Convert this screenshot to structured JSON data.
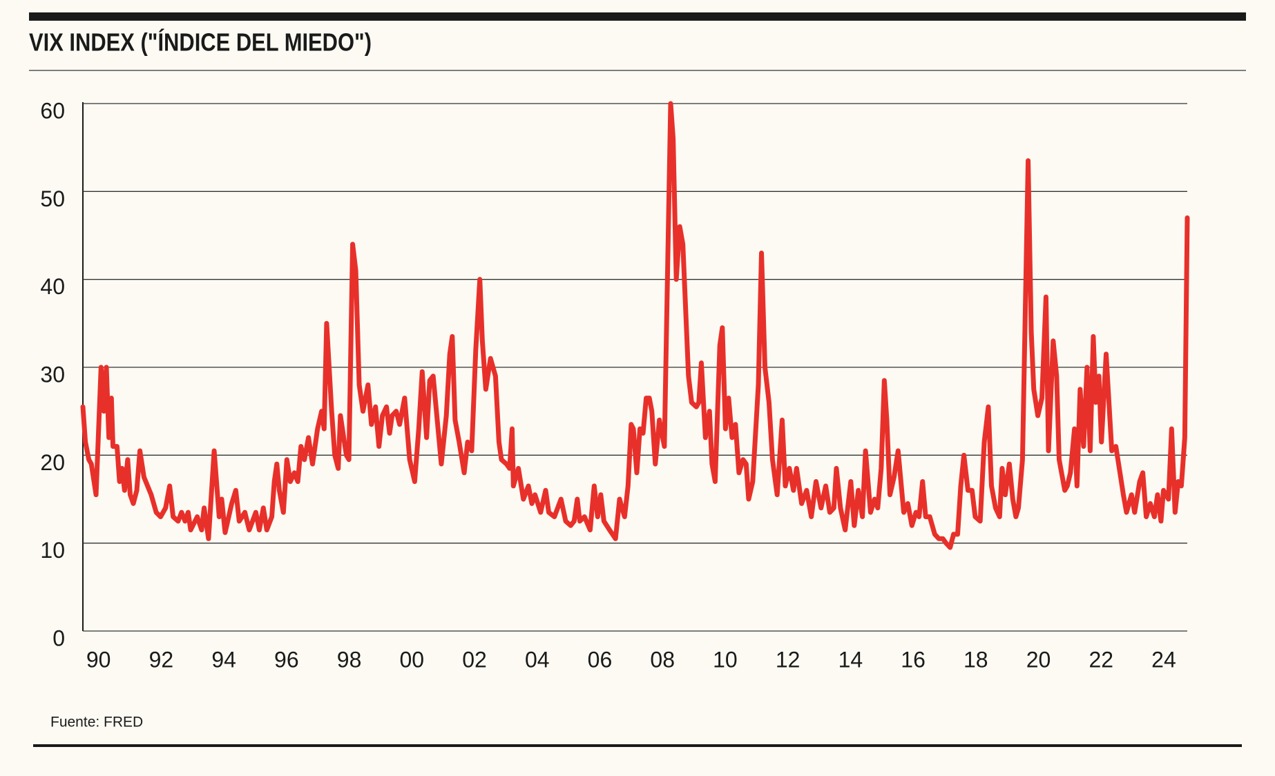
{
  "chart_data": {
    "type": "line",
    "title": "VIX INDEX (\"ÍNDICE DEL MIEDO\")",
    "source": "Fuente: FRED",
    "color": "#e8302a",
    "grid": true,
    "xlim": [
      1990,
      2025.25
    ],
    "ylim": [
      0,
      60
    ],
    "yticks": [
      0,
      10,
      20,
      30,
      40,
      50,
      60
    ],
    "xticks": [
      {
        "value": 1990,
        "label": "90"
      },
      {
        "value": 1992,
        "label": "92"
      },
      {
        "value": 1994,
        "label": "94"
      },
      {
        "value": 1996,
        "label": "96"
      },
      {
        "value": 1998,
        "label": "98"
      },
      {
        "value": 2000,
        "label": "00"
      },
      {
        "value": 2002,
        "label": "02"
      },
      {
        "value": 2004,
        "label": "04"
      },
      {
        "value": 2006,
        "label": "06"
      },
      {
        "value": 2008,
        "label": "08"
      },
      {
        "value": 2010,
        "label": "10"
      },
      {
        "value": 2012,
        "label": "12"
      },
      {
        "value": 2014,
        "label": "14"
      },
      {
        "value": 2016,
        "label": "16"
      },
      {
        "value": 2018,
        "label": "18"
      },
      {
        "value": 2020,
        "label": "20"
      },
      {
        "value": 2022,
        "label": "22"
      },
      {
        "value": 2024,
        "label": "24"
      }
    ],
    "x": [
      1990.0,
      1990.08,
      1990.19,
      1990.27,
      1990.42,
      1990.58,
      1990.67,
      1990.75,
      1990.83,
      1990.91,
      1990.96,
      1991.09,
      1991.17,
      1991.25,
      1991.33,
      1991.43,
      1991.51,
      1991.61,
      1991.72,
      1991.82,
      1991.95,
      1992.18,
      1992.34,
      1992.48,
      1992.64,
      1992.77,
      1992.88,
      1993.04,
      1993.15,
      1993.26,
      1993.36,
      1993.44,
      1993.65,
      1993.79,
      1993.87,
      1994.01,
      1994.19,
      1994.35,
      1994.43,
      1994.54,
      1994.75,
      1994.88,
      1994.99,
      1995.17,
      1995.31,
      1995.52,
      1995.63,
      1995.76,
      1995.87,
      1996.03,
      1996.11,
      1996.19,
      1996.27,
      1996.4,
      1996.51,
      1996.62,
      1996.75,
      1996.86,
      1996.96,
      1997.07,
      1997.2,
      1997.33,
      1997.49,
      1997.62,
      1997.7,
      1997.78,
      1997.94,
      1998.04,
      1998.15,
      1998.22,
      1998.41,
      1998.49,
      1998.61,
      1998.71,
      1998.82,
      1998.94,
      1999.1,
      1999.21,
      1999.34,
      1999.45,
      1999.56,
      1999.69,
      1999.79,
      1999.87,
      2000.0,
      2000.11,
      2000.27,
      2000.43,
      2000.59,
      2000.72,
      2000.83,
      2000.97,
      2001.07,
      2001.18,
      2001.31,
      2001.44,
      2001.6,
      2001.71,
      2001.79,
      2001.88,
      2002.01,
      2002.17,
      2002.28,
      2002.41,
      2002.54,
      2002.67,
      2002.75,
      2002.86,
      2003.01,
      2003.17,
      2003.28,
      2003.36,
      2003.52,
      2003.62,
      2003.7,
      2003.74,
      2003.9,
      2004.06,
      2004.22,
      2004.33,
      2004.43,
      2004.61,
      2004.77,
      2004.87,
      2005.05,
      2005.26,
      2005.41,
      2005.57,
      2005.68,
      2005.78,
      2005.86,
      2006.01,
      2006.19,
      2006.32,
      2006.43,
      2006.53,
      2006.63,
      2006.81,
      2007.0,
      2007.13,
      2007.29,
      2007.4,
      2007.5,
      2007.57,
      2007.68,
      2007.78,
      2007.88,
      2007.98,
      2008.08,
      2008.16,
      2008.27,
      2008.4,
      2008.56,
      2008.76,
      2008.84,
      2008.94,
      2009.05,
      2009.15,
      2009.33,
      2009.43,
      2009.58,
      2009.66,
      2009.74,
      2009.87,
      2010.0,
      2010.08,
      2010.18,
      2010.33,
      2010.41,
      2010.51,
      2010.61,
      2010.72,
      2010.83,
      2010.94,
      2011.07,
      2011.17,
      2011.25,
      2011.38,
      2011.56,
      2011.66,
      2011.77,
      2011.9,
      2012.01,
      2012.16,
      2012.32,
      2012.42,
      2012.55,
      2012.68,
      2012.78,
      2012.94,
      2013.1,
      2013.25,
      2013.4,
      2013.56,
      2013.71,
      2013.84,
      2013.97,
      2014.05,
      2014.18,
      2014.33,
      2014.51,
      2014.62,
      2014.75,
      2014.88,
      2014.98,
      2015.14,
      2015.27,
      2015.37,
      2015.48,
      2015.58,
      2015.66,
      2015.76,
      2015.89,
      2016.02,
      2016.2,
      2016.33,
      2016.46,
      2016.59,
      2016.69,
      2016.8,
      2016.9,
      2017.03,
      2017.19,
      2017.32,
      2017.45,
      2017.55,
      2017.68,
      2017.79,
      2017.92,
      2018.02,
      2018.12,
      2018.25,
      2018.38,
      2018.48,
      2018.64,
      2018.77,
      2018.9,
      2019.0,
      2019.13,
      2019.26,
      2019.34,
      2019.44,
      2019.57,
      2019.68,
      2019.78,
      2019.86,
      2019.99,
      2020.17,
      2020.27,
      2020.35,
      2020.48,
      2020.61,
      2020.74,
      2020.82,
      2020.97,
      2021.08,
      2021.16,
      2021.34,
      2021.42,
      2021.52,
      2021.65,
      2021.73,
      2021.83,
      2021.94,
      2022.05,
      2022.15,
      2022.25,
      2022.33,
      2022.43,
      2022.51,
      2022.66,
      2022.84,
      2022.97,
      2023.08,
      2023.21,
      2023.31,
      2023.47,
      2023.57,
      2023.73,
      2023.83,
      2023.94,
      2024.07,
      2024.2,
      2024.3,
      2024.41,
      2024.49,
      2024.65,
      2024.75,
      2024.86,
      2024.96,
      2025.06,
      2025.17,
      2025.25
    ],
    "values": [
      25.5,
      21.5,
      19.5,
      19,
      15.5,
      30,
      25,
      30,
      22,
      26.5,
      21,
      21,
      17,
      18.5,
      16,
      19.5,
      15.5,
      14.5,
      16,
      20.5,
      17.5,
      15.5,
      13.5,
      13,
      14,
      16.5,
      13,
      12.5,
      13.5,
      12.5,
      13.5,
      11.5,
      13,
      11.5,
      14,
      10.5,
      20.5,
      13,
      15,
      11.2,
      14.5,
      16,
      12.5,
      13.5,
      11.5,
      13.5,
      11.5,
      14,
      11.5,
      13,
      17,
      19,
      16,
      13.5,
      19.5,
      17,
      18,
      17,
      21,
      19.5,
      22,
      19,
      23,
      25,
      23,
      35,
      25,
      20,
      18.5,
      24.5,
      20,
      19.5,
      44,
      41,
      28,
      25,
      28,
      23.5,
      25.5,
      21,
      24.5,
      25.5,
      22.5,
      24.5,
      25,
      23.5,
      26.5,
      19.5,
      17,
      23,
      29.5,
      22,
      28.5,
      29,
      24,
      19,
      24.5,
      31.5,
      33.5,
      24,
      21.5,
      18,
      21.5,
      20.5,
      32,
      40,
      33,
      27.5,
      31,
      29,
      21.5,
      19.5,
      19,
      18.5,
      23,
      16.5,
      18.5,
      15,
      16.5,
      14.5,
      15.5,
      13.5,
      16,
      13.5,
      13,
      15,
      12.5,
      12,
      12.5,
      15,
      12.5,
      13,
      11.5,
      16.5,
      13,
      15.5,
      12.5,
      11.5,
      10.5,
      15,
      13,
      16.5,
      23.5,
      23,
      18,
      23,
      22.5,
      26.5,
      26.5,
      25,
      19,
      24,
      21,
      60,
      56,
      40,
      46,
      44,
      29,
      26,
      25.5,
      26,
      30.5,
      22,
      25,
      19,
      17,
      32.5,
      34.5,
      23,
      26.5,
      22,
      23.5,
      18,
      19.5,
      19,
      15,
      17,
      28,
      43,
      30,
      26,
      19.5,
      15.5,
      24,
      16.5,
      18.5,
      16,
      18.5,
      14.5,
      16,
      13,
      17,
      14,
      16.5,
      13.5,
      14,
      18.5,
      14,
      11.5,
      17,
      12,
      16,
      13,
      20.5,
      13.5,
      15,
      14,
      18.5,
      28.5,
      24,
      15.5,
      17.5,
      20.5,
      13.5,
      14.5,
      12,
      13.5,
      13,
      17,
      13,
      13,
      11,
      10.5,
      10.5,
      10,
      9.5,
      11,
      11,
      16.5,
      20,
      16,
      16,
      13,
      12.5,
      21.5,
      25.5,
      16.5,
      14,
      13,
      18.5,
      15.5,
      19,
      15,
      13,
      14,
      19.5,
      53.5,
      34,
      27.5,
      24.5,
      26.5,
      38,
      20.5,
      33,
      29,
      19.5,
      16,
      16.5,
      18,
      23,
      16.5,
      27.5,
      21,
      30,
      20.5,
      33.5,
      26,
      29,
      21.5,
      31.5,
      20.5,
      21,
      18.5,
      15.5,
      13.5,
      15.5,
      13.5,
      17,
      18,
      13,
      14.5,
      13,
      15.5,
      12.5,
      16,
      15,
      23,
      13.5,
      17,
      16.5,
      22,
      47
    ]
  }
}
